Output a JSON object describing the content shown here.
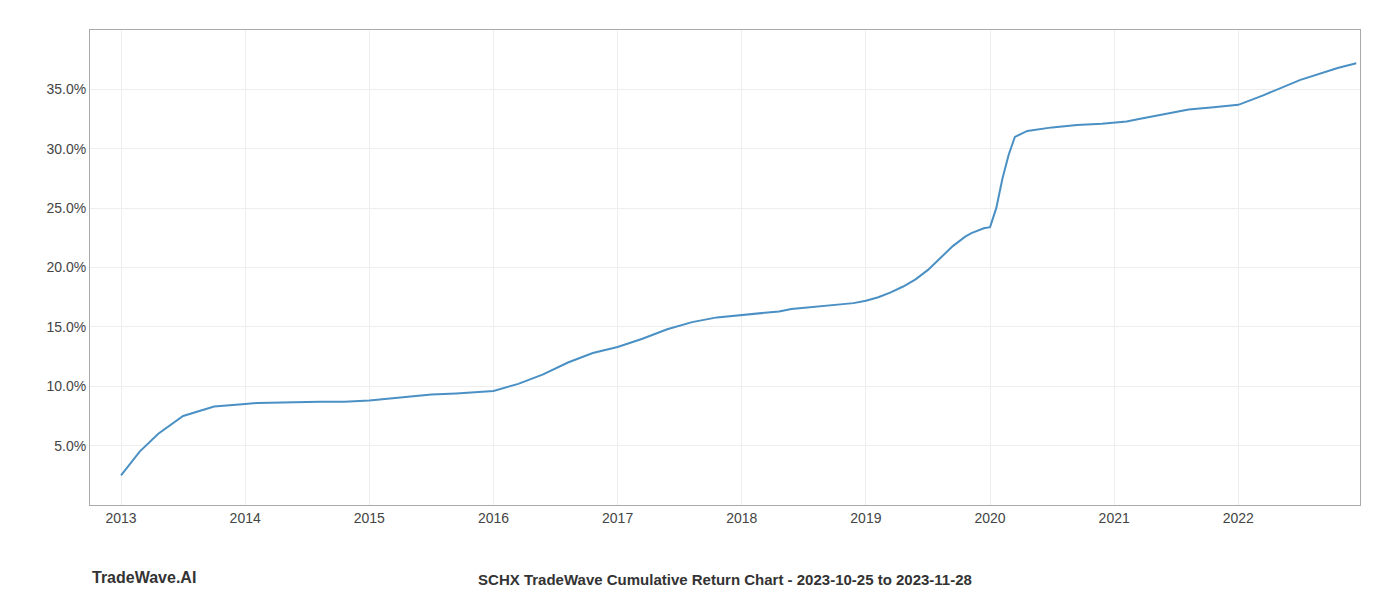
{
  "chart_data": {
    "type": "line",
    "title": "SCHX TradeWave Cumulative Return Chart - 2023-10-25 to 2023-11-28",
    "annotations": [
      "TradeWave.AI"
    ],
    "color": "#4a90c4",
    "grid": true,
    "x": [
      2013.0,
      2013.05,
      2013.15,
      2013.3,
      2013.5,
      2013.75,
      2013.9,
      2014.0,
      2014.1,
      2014.2,
      2014.4,
      2014.6,
      2014.8,
      2015.0,
      2015.1,
      2015.3,
      2015.5,
      2015.7,
      2015.9,
      2016.0,
      2016.2,
      2016.4,
      2016.6,
      2016.8,
      2017.0,
      2017.2,
      2017.4,
      2017.6,
      2017.8,
      2018.0,
      2018.1,
      2018.2,
      2018.3,
      2018.4,
      2018.5,
      2018.6,
      2018.7,
      2018.8,
      2018.9,
      2019.0,
      2019.1,
      2019.2,
      2019.3,
      2019.4,
      2019.5,
      2019.6,
      2019.7,
      2019.75,
      2019.8,
      2019.85,
      2019.9,
      2019.95,
      2020.0,
      2020.05,
      2020.1,
      2020.15,
      2020.2,
      2020.3,
      2020.5,
      2020.7,
      2020.9,
      2021.0,
      2021.1,
      2021.2,
      2021.3,
      2021.4,
      2021.6,
      2021.8,
      2022.0,
      2022.2,
      2022.5,
      2022.8,
      2022.95
    ],
    "values": [
      2.5,
      3.2,
      4.5,
      6.0,
      7.5,
      8.3,
      8.4,
      8.5,
      8.6,
      8.6,
      8.65,
      8.7,
      8.7,
      8.8,
      8.9,
      9.1,
      9.3,
      9.4,
      9.5,
      9.6,
      10.2,
      11.0,
      12.0,
      12.8,
      13.3,
      14.0,
      14.8,
      15.4,
      15.8,
      16.0,
      16.1,
      16.2,
      16.3,
      16.5,
      16.6,
      16.7,
      16.8,
      16.9,
      17.0,
      17.2,
      17.5,
      17.9,
      18.4,
      19.0,
      19.8,
      20.8,
      21.8,
      22.2,
      22.6,
      22.9,
      23.1,
      23.3,
      23.4,
      25.0,
      27.5,
      29.5,
      31.0,
      31.5,
      31.8,
      32.0,
      32.1,
      32.2,
      32.3,
      32.5,
      32.7,
      32.9,
      33.3,
      33.5,
      33.7,
      34.5,
      35.8,
      36.8,
      37.2
    ],
    "xlim": [
      2012.75,
      2022.98
    ],
    "ylim": [
      0,
      40
    ],
    "xticks": [
      2013,
      2014,
      2015,
      2016,
      2017,
      2018,
      2019,
      2020,
      2021,
      2022
    ],
    "yticks": [
      {
        "value": 5.0,
        "label": "5.0%"
      },
      {
        "value": 10.0,
        "label": "10.0%"
      },
      {
        "value": 15.0,
        "label": "15.0%"
      },
      {
        "value": 20.0,
        "label": "20.0%"
      },
      {
        "value": 25.0,
        "label": "25.0%"
      },
      {
        "value": 30.0,
        "label": "30.0%"
      },
      {
        "value": 35.0,
        "label": "35.0%"
      }
    ]
  }
}
